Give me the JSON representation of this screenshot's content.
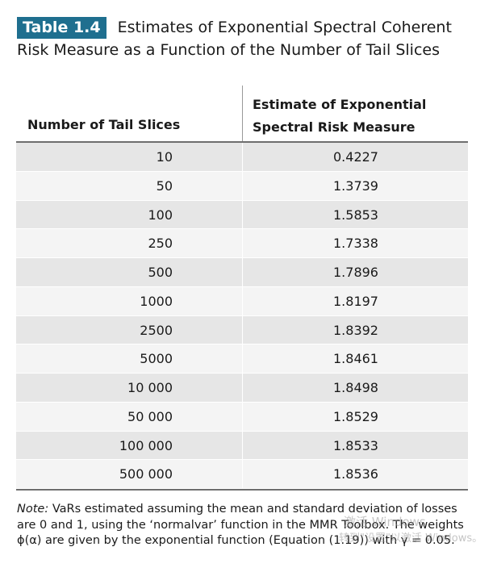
{
  "caption": {
    "label": "Table 1.4",
    "title": "Estimates of Exponential Spectral Coherent Risk Measure as a Function of the Number of Tail Slices"
  },
  "table": {
    "headers": [
      "Number of Tail Slices",
      "Estimate of Exponential Spectral Risk Measure"
    ],
    "rows": [
      {
        "n": "10",
        "v": "0.4227"
      },
      {
        "n": "50",
        "v": "1.3739"
      },
      {
        "n": "100",
        "v": "1.5853"
      },
      {
        "n": "250",
        "v": "1.7338"
      },
      {
        "n": "500",
        "v": "1.7896"
      },
      {
        "n": "1000",
        "v": "1.8197"
      },
      {
        "n": "2500",
        "v": "1.8392"
      },
      {
        "n": "5000",
        "v": "1.8461"
      },
      {
        "n": "10 000",
        "v": "1.8498"
      },
      {
        "n": "50 000",
        "v": "1.8529"
      },
      {
        "n": "100 000",
        "v": "1.8533"
      },
      {
        "n": "500 000",
        "v": "1.8536"
      }
    ]
  },
  "note": {
    "label": "Note:",
    "text": " VaRs estimated assuming the mean and standard deviation of losses are 0 and 1, using the ‘normalvar’ function in the MMR Toolbox. The weights ϕ(α) are given by the exponential function (Equation (1.19)) with γ = 0.05."
  },
  "watermark": {
    "line1": "激活 Windows",
    "line2": "转到\"设置\"以激活 Windows。"
  },
  "colors": {
    "badge": "#1f6f8f",
    "row_dark": "#e6e6e6",
    "row_light": "#f4f4f4"
  }
}
